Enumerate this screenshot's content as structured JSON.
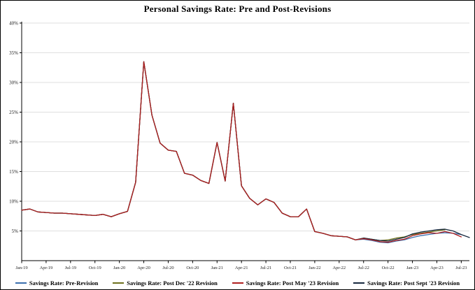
{
  "chart_data": {
    "type": "line",
    "title": "Personal Savings Rate: Pre and Post-Revisions",
    "xlabel": "",
    "ylabel": "",
    "ylim": [
      0,
      40
    ],
    "grid": true,
    "legend_position": "bottom",
    "x_count": 56,
    "x_tick_indices": [
      0,
      3,
      6,
      9,
      12,
      15,
      18,
      21,
      24,
      27,
      30,
      33,
      36,
      39,
      42,
      45,
      48,
      51,
      54
    ],
    "x_tick_labels": [
      "Jan-19",
      "Apr-19",
      "Jul-19",
      "Oct-19",
      "Jan-20",
      "Apr-20",
      "Jul-20",
      "Oct-20",
      "Jan-21",
      "Apr-21",
      "Jul-21",
      "Oct-21",
      "Jan-22",
      "Apr-22",
      "Jul-22",
      "Oct-22",
      "Jan-23",
      "Apr-23",
      "Jul-23"
    ],
    "y_tick_values": [
      5,
      10,
      15,
      20,
      25,
      30,
      35,
      40
    ],
    "y_tick_labels": [
      "5%",
      "10%",
      "15%",
      "20%",
      "25%",
      "30%",
      "35%",
      "40%"
    ],
    "colors": {
      "grid": "#d4d4d4",
      "axis": "#000000",
      "background": "#ffffff"
    },
    "series": [
      {
        "name": "Savings Rate: Pre-Revision",
        "color": "#3b6fae",
        "z": 1,
        "values": [
          8.5,
          8.7,
          8.2,
          8.1,
          8.0,
          8.0,
          7.9,
          7.8,
          7.7,
          7.6,
          7.8,
          7.4,
          7.9,
          8.3,
          13.2,
          33.5,
          24.5,
          19.8,
          18.6,
          18.4,
          14.7,
          14.4,
          13.5,
          13.0,
          19.9,
          13.4,
          26.5,
          12.6,
          10.5,
          9.4,
          10.4,
          9.8,
          8.0,
          7.4,
          7.4,
          8.7,
          4.9,
          4.6,
          4.2,
          4.1,
          4.0,
          3.5,
          3.6,
          3.4,
          3.1,
          3.0,
          3.3,
          3.5,
          3.9,
          4.2,
          4.4,
          4.6,
          4.7,
          4.6,
          4.4,
          null
        ]
      },
      {
        "name": "Savings Rate: Post Dec '22 Revision",
        "color": "#6e701d",
        "z": 2,
        "values": [
          8.5,
          8.7,
          8.2,
          8.1,
          8.0,
          8.0,
          7.9,
          7.8,
          7.7,
          7.6,
          7.8,
          7.4,
          7.9,
          8.3,
          13.2,
          33.5,
          24.5,
          19.8,
          18.6,
          18.4,
          14.7,
          14.4,
          13.5,
          13.0,
          19.9,
          13.4,
          26.5,
          12.6,
          10.5,
          9.4,
          10.4,
          9.8,
          8.0,
          7.4,
          7.4,
          8.7,
          4.9,
          4.6,
          4.2,
          4.1,
          4.0,
          3.5,
          3.8,
          3.6,
          3.4,
          3.5,
          3.8,
          4.0,
          4.4,
          4.6,
          4.8,
          5.0,
          5.2,
          null,
          null,
          null
        ]
      },
      {
        "name": "Savings Rate: Post May '23 Revision",
        "color": "#b02020",
        "z": 4,
        "values": [
          8.5,
          8.7,
          8.2,
          8.1,
          8.0,
          8.0,
          7.9,
          7.8,
          7.7,
          7.6,
          7.8,
          7.4,
          7.9,
          8.3,
          13.2,
          33.5,
          24.5,
          19.8,
          18.6,
          18.4,
          14.7,
          14.4,
          13.5,
          13.0,
          19.9,
          13.4,
          26.5,
          12.6,
          10.5,
          9.4,
          10.4,
          9.8,
          8.0,
          7.4,
          7.4,
          8.7,
          4.9,
          4.6,
          4.2,
          4.1,
          4.0,
          3.5,
          3.7,
          3.5,
          3.2,
          3.1,
          3.4,
          3.6,
          4.2,
          4.5,
          4.7,
          4.6,
          4.9,
          4.6,
          4.0,
          null
        ]
      },
      {
        "name": "Savings Rate: Post Sept '23 Revision",
        "color": "#17293f",
        "z": 3,
        "values": [
          8.5,
          8.7,
          8.2,
          8.1,
          8.0,
          8.0,
          7.9,
          7.8,
          7.7,
          7.6,
          7.8,
          7.4,
          7.9,
          8.3,
          13.2,
          33.5,
          24.5,
          19.8,
          18.6,
          18.4,
          14.7,
          14.4,
          13.5,
          13.0,
          19.9,
          13.4,
          26.5,
          12.6,
          10.5,
          9.4,
          10.4,
          9.8,
          8.0,
          7.4,
          7.4,
          8.7,
          4.9,
          4.6,
          4.2,
          4.1,
          4.0,
          3.5,
          3.8,
          3.6,
          3.4,
          3.3,
          3.6,
          3.9,
          4.5,
          4.8,
          5.0,
          5.2,
          5.3,
          5.0,
          4.4,
          3.9
        ]
      }
    ]
  }
}
